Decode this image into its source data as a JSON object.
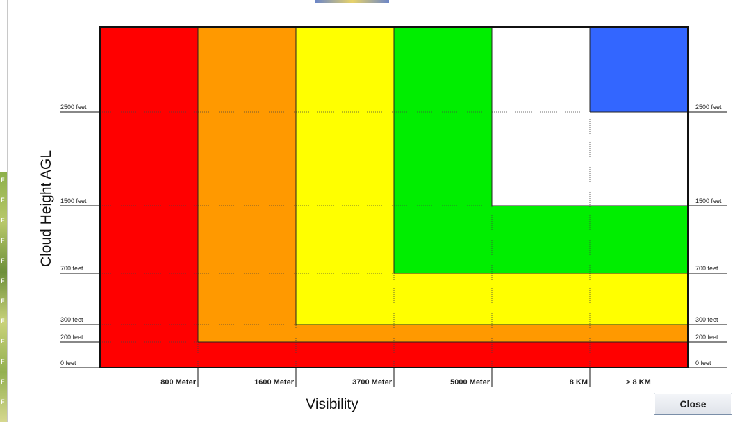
{
  "dialog": {
    "close_label": "Close"
  },
  "edge_letters": [
    "F",
    "F",
    "F",
    "F",
    "F",
    "F",
    "F",
    "F",
    "F",
    "F",
    "F",
    "F"
  ],
  "chart_data": {
    "type": "heatmap",
    "title": "",
    "xlabel": "Visibility",
    "ylabel": "Cloud Height AGL",
    "x_tick_labels": [
      "800 Meter",
      "1600 Meter",
      "3700 Meter",
      "5000 Meter",
      "8 KM",
      "> 8 KM"
    ],
    "y_levels": [
      {
        "feet": 0,
        "label": "0 feet"
      },
      {
        "feet": 200,
        "label": "200 feet"
      },
      {
        "feet": 300,
        "label": "300 feet"
      },
      {
        "feet": 700,
        "label": "700 feet"
      },
      {
        "feet": 1500,
        "label": "1500 feet"
      },
      {
        "feet": 2500,
        "label": "2500 feet"
      }
    ],
    "colors": {
      "red": "#ff0000",
      "orange": "#ff9900",
      "yellow": "#ffff00",
      "green": "#00ee00",
      "white": "#ffffff",
      "blue": "#3366ff"
    },
    "columns": [
      "< 800 Meter",
      "800-1600 Meter",
      "1600-3700 Meter",
      "3700-5000 Meter",
      "5000 Meter-8 KM",
      "> 8 KM"
    ],
    "rows": [
      "0-200 feet",
      "200-300 feet",
      "300-700 feet",
      "700-1500 feet",
      "1500-2500 feet",
      "> 2500 feet"
    ],
    "cells": [
      [
        "red",
        "red",
        "red",
        "red",
        "red",
        "red"
      ],
      [
        "red",
        "orange",
        "orange",
        "orange",
        "orange",
        "orange"
      ],
      [
        "red",
        "orange",
        "yellow",
        "yellow",
        "yellow",
        "yellow"
      ],
      [
        "red",
        "orange",
        "yellow",
        "green",
        "green",
        "green"
      ],
      [
        "red",
        "orange",
        "yellow",
        "green",
        "white",
        "white"
      ],
      [
        "red",
        "orange",
        "yellow",
        "green",
        "white",
        "blue"
      ]
    ],
    "grid": true
  }
}
